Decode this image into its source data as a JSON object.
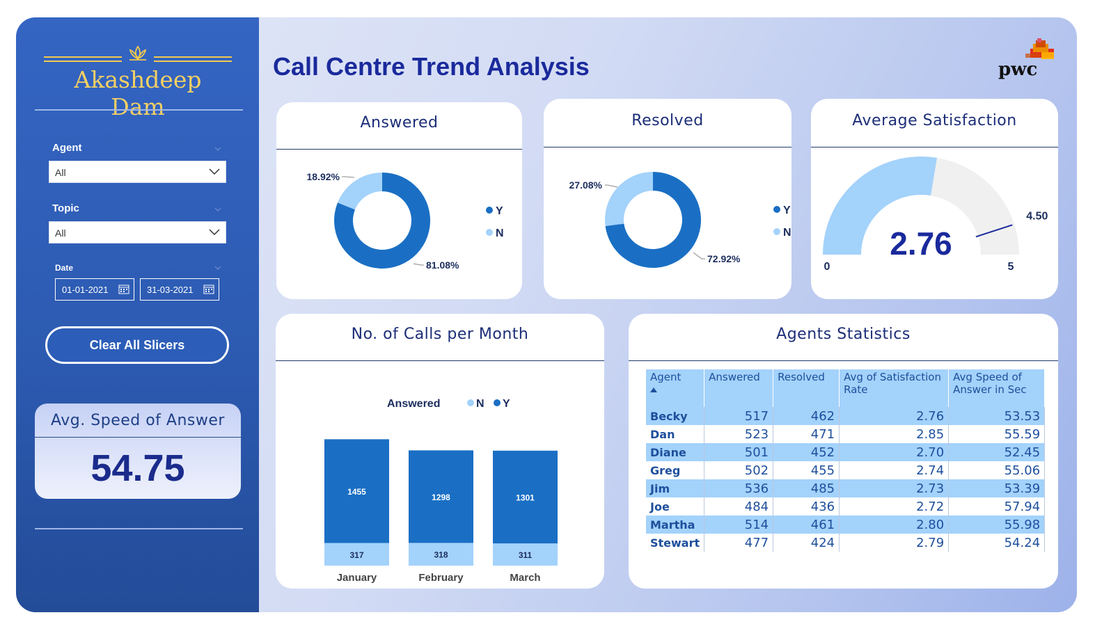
{
  "brand": {
    "name": "Akashdeep Dam"
  },
  "sidebar": {
    "agent_label": "Agent",
    "agent_value": "All",
    "topic_label": "Topic",
    "topic_value": "All",
    "date_label": "Date",
    "date_from": "01-01-2021",
    "date_to": "31-03-2021",
    "clear_button": "Clear All Slicers",
    "kpi_title": "Avg. Speed of Answer",
    "kpi_value": "54.75"
  },
  "header": {
    "title": "Call Centre Trend Analysis",
    "logo": "pwc"
  },
  "colors": {
    "dark": "#1a6fc4",
    "light": "#a3d2fb",
    "gauge_bg": "#f0f0f0",
    "title": "#1a2a9c"
  },
  "cards": {
    "answered_title": "Answered",
    "resolved_title": "Resolved",
    "satisfaction_title": "Average Satisfaction",
    "calls_title": "No. of Calls per Month",
    "agents_title": "Agents Statistics"
  },
  "chart_data": [
    {
      "type": "pie",
      "title": "Answered",
      "labels": [
        "Y",
        "N"
      ],
      "values": [
        81.08,
        18.92
      ],
      "value_labels": [
        "81.08%",
        "18.92%"
      ],
      "legend": "right"
    },
    {
      "type": "pie",
      "title": "Resolved",
      "labels": [
        "Y",
        "N"
      ],
      "values": [
        72.92,
        27.08
      ],
      "value_labels": [
        "72.92%",
        "27.08%"
      ],
      "legend": "right"
    },
    {
      "type": "gauge",
      "title": "Average Satisfaction",
      "value": 2.76,
      "value_label": "2.76",
      "min": 0,
      "max": 5,
      "target": 4.5,
      "min_label": "0",
      "max_label": "5",
      "target_label": "4.50"
    },
    {
      "type": "bar",
      "stacked": true,
      "title": "No. of Calls per Month",
      "legend_title": "Answered",
      "legend": "top",
      "categories": [
        "January",
        "February",
        "March"
      ],
      "series": [
        {
          "name": "N",
          "values": [
            317,
            318,
            311
          ]
        },
        {
          "name": "Y",
          "values": [
            1455,
            1298,
            1301
          ]
        }
      ]
    },
    {
      "type": "table",
      "title": "Agents Statistics",
      "columns": [
        "Agent",
        "Answered",
        "Resolved",
        "Avg of Satisfaction Rate",
        "Avg Speed of Answer in Sec"
      ],
      "rows": [
        [
          "Becky",
          "517",
          "462",
          "2.76",
          "53.53"
        ],
        [
          "Dan",
          "523",
          "471",
          "2.85",
          "55.59"
        ],
        [
          "Diane",
          "501",
          "452",
          "2.70",
          "52.45"
        ],
        [
          "Greg",
          "502",
          "455",
          "2.74",
          "55.06"
        ],
        [
          "Jim",
          "536",
          "485",
          "2.73",
          "53.39"
        ],
        [
          "Joe",
          "484",
          "436",
          "2.72",
          "57.94"
        ],
        [
          "Martha",
          "514",
          "461",
          "2.80",
          "55.98"
        ],
        [
          "Stewart",
          "477",
          "424",
          "2.79",
          "54.24"
        ]
      ]
    }
  ]
}
